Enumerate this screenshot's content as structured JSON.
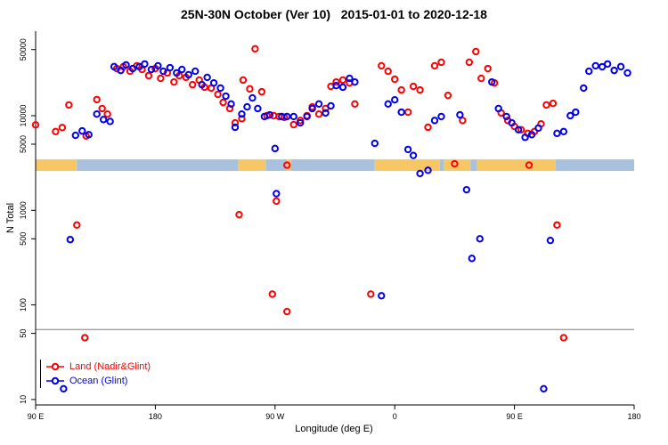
{
  "figure": {
    "background": "#ffffff"
  },
  "chart_data": {
    "type": "scatter",
    "title": "25N-30N October (Ver 10)   2015-01-01 to 2020-12-18",
    "xlabel": "Longitude (deg E)",
    "ylabel": "N Total",
    "yscale": "log",
    "grid": false,
    "legend_position": "bottom-left",
    "ylim": [
      10,
      50000
    ],
    "xlim_deg_east": [
      90,
      540
    ],
    "x_axis": {
      "ticks": [
        {
          "lon": 90,
          "label": "90 E"
        },
        {
          "lon": 180,
          "label": "180"
        },
        {
          "lon": 270,
          "label": "90 W"
        },
        {
          "lon": 360,
          "label": "0"
        },
        {
          "lon": 450,
          "label": "90 E"
        },
        {
          "lon": 540,
          "label": "180"
        }
      ]
    },
    "y_axis": {
      "ticks": [
        10,
        50,
        100,
        500,
        1000,
        5000,
        10000,
        50000
      ],
      "labels": [
        "10",
        "50",
        "100",
        "500",
        "1000",
        "5000",
        "10000",
        "50000"
      ]
    },
    "reference_line": {
      "n": 55,
      "color": "#7f7f7f"
    },
    "band": {
      "n": 3000,
      "half_height": 6.5,
      "land_color": "#f7c766",
      "ocean_color": "#a8c2de",
      "segments": [
        {
          "from": 90,
          "to": 121,
          "type": "land"
        },
        {
          "from": 121,
          "to": 242,
          "type": "ocean"
        },
        {
          "from": 242,
          "to": 263,
          "type": "land"
        },
        {
          "from": 263,
          "to": 279,
          "type": "ocean"
        },
        {
          "from": 279,
          "to": 282,
          "type": "land"
        },
        {
          "from": 282,
          "to": 345,
          "type": "ocean"
        },
        {
          "from": 345,
          "to": 394,
          "type": "land"
        },
        {
          "from": 394,
          "to": 397,
          "type": "ocean"
        },
        {
          "from": 397,
          "to": 417,
          "type": "land"
        },
        {
          "from": 417,
          "to": 422,
          "type": "ocean"
        },
        {
          "from": 422,
          "to": 481,
          "type": "land"
        },
        {
          "from": 481,
          "to": 540,
          "type": "ocean"
        }
      ]
    },
    "series": [
      {
        "name": "Land (Nadir&Glint)",
        "color": "#ff0000",
        "points": [
          [
            90,
            8000
          ],
          [
            105,
            6800
          ],
          [
            110,
            7500
          ],
          [
            115,
            13000
          ],
          [
            121,
            700
          ],
          [
            127,
            45
          ],
          [
            128,
            6100
          ],
          [
            136,
            14800
          ],
          [
            140,
            11900
          ],
          [
            144,
            10400
          ],
          [
            151,
            31500
          ],
          [
            156,
            33000
          ],
          [
            161,
            29500
          ],
          [
            166,
            33700
          ],
          [
            170,
            30800
          ],
          [
            175,
            26500
          ],
          [
            180,
            31500
          ],
          [
            184,
            24800
          ],
          [
            189,
            28300
          ],
          [
            194,
            22700
          ],
          [
            198,
            26500
          ],
          [
            203,
            25400
          ],
          [
            208,
            21300
          ],
          [
            213,
            23800
          ],
          [
            217,
            20000
          ],
          [
            222,
            19600
          ],
          [
            227,
            16800
          ],
          [
            231,
            13800
          ],
          [
            236,
            11900
          ],
          [
            240,
            8400
          ],
          [
            243,
            900
          ],
          [
            245,
            9300
          ],
          [
            246,
            23800
          ],
          [
            251,
            19200
          ],
          [
            255,
            51000
          ],
          [
            260,
            17900
          ],
          [
            264,
            10000
          ],
          [
            268,
            130
          ],
          [
            269,
            10000
          ],
          [
            271,
            1250
          ],
          [
            273,
            9800
          ],
          [
            277,
            9600
          ],
          [
            279,
            3000
          ],
          [
            279,
            85
          ],
          [
            284,
            8050
          ],
          [
            289,
            8900
          ],
          [
            294,
            10000
          ],
          [
            298,
            12400
          ],
          [
            303,
            10400
          ],
          [
            308,
            11900
          ],
          [
            312,
            20400
          ],
          [
            316,
            22700
          ],
          [
            321,
            23800
          ],
          [
            326,
            22200
          ],
          [
            330,
            13300
          ],
          [
            342,
            130
          ],
          [
            350,
            33700
          ],
          [
            355,
            29500
          ],
          [
            360,
            24300
          ],
          [
            365,
            18700
          ],
          [
            370,
            10900
          ],
          [
            374,
            20400
          ],
          [
            379,
            18700
          ],
          [
            385,
            7550
          ],
          [
            390,
            33700
          ],
          [
            395,
            36700
          ],
          [
            400,
            16400
          ],
          [
            405,
            3100
          ],
          [
            411,
            8900
          ],
          [
            416,
            36700
          ],
          [
            421,
            47600
          ],
          [
            425,
            24800
          ],
          [
            430,
            31500
          ],
          [
            435,
            22200
          ],
          [
            440,
            10700
          ],
          [
            445,
            8900
          ],
          [
            450,
            7700
          ],
          [
            455,
            7100
          ],
          [
            460,
            6500
          ],
          [
            461,
            3000
          ],
          [
            465,
            6800
          ],
          [
            470,
            8200
          ],
          [
            474,
            13000
          ],
          [
            479,
            13500
          ],
          [
            482,
            700
          ],
          [
            487,
            45
          ]
        ]
      },
      {
        "name": "Ocean (Glint)",
        "color": "#0000ee",
        "points": [
          [
            111,
            13
          ],
          [
            116,
            490
          ],
          [
            120,
            6200
          ],
          [
            125,
            6900
          ],
          [
            130,
            6300
          ],
          [
            136,
            10400
          ],
          [
            141,
            9100
          ],
          [
            146,
            8700
          ],
          [
            149,
            33000
          ],
          [
            154,
            30100
          ],
          [
            158,
            34400
          ],
          [
            163,
            31500
          ],
          [
            168,
            33000
          ],
          [
            172,
            35200
          ],
          [
            177,
            30800
          ],
          [
            182,
            33700
          ],
          [
            186,
            29500
          ],
          [
            191,
            32200
          ],
          [
            196,
            28300
          ],
          [
            200,
            30800
          ],
          [
            205,
            27100
          ],
          [
            210,
            29500
          ],
          [
            215,
            21300
          ],
          [
            219,
            25400
          ],
          [
            224,
            22200
          ],
          [
            229,
            19600
          ],
          [
            233,
            16100
          ],
          [
            237,
            13300
          ],
          [
            240,
            7550
          ],
          [
            245,
            10400
          ],
          [
            249,
            12400
          ],
          [
            253,
            15400
          ],
          [
            257,
            11900
          ],
          [
            262,
            9800
          ],
          [
            266,
            10200
          ],
          [
            270,
            4500
          ],
          [
            271,
            1500
          ],
          [
            275,
            9800
          ],
          [
            279,
            9800
          ],
          [
            284,
            9800
          ],
          [
            289,
            8400
          ],
          [
            294,
            9800
          ],
          [
            298,
            11900
          ],
          [
            303,
            13300
          ],
          [
            308,
            10700
          ],
          [
            312,
            12700
          ],
          [
            316,
            20800
          ],
          [
            321,
            20000
          ],
          [
            326,
            24800
          ],
          [
            330,
            22700
          ],
          [
            345,
            5100
          ],
          [
            350,
            125
          ],
          [
            355,
            13300
          ],
          [
            360,
            14700
          ],
          [
            365,
            10900
          ],
          [
            370,
            4400
          ],
          [
            374,
            3800
          ],
          [
            379,
            2450
          ],
          [
            385,
            2650
          ],
          [
            390,
            8900
          ],
          [
            395,
            9800
          ],
          [
            409,
            10200
          ],
          [
            414,
            1650
          ],
          [
            418,
            310
          ],
          [
            424,
            500
          ],
          [
            433,
            22700
          ],
          [
            438,
            11900
          ],
          [
            444,
            9800
          ],
          [
            448,
            8400
          ],
          [
            453,
            7100
          ],
          [
            458,
            5900
          ],
          [
            463,
            6300
          ],
          [
            468,
            7400
          ],
          [
            472,
            13
          ],
          [
            477,
            480
          ],
          [
            482,
            6500
          ],
          [
            487,
            6800
          ],
          [
            492,
            10000
          ],
          [
            496,
            10900
          ],
          [
            502,
            19600
          ],
          [
            506,
            29500
          ],
          [
            511,
            33700
          ],
          [
            516,
            32900
          ],
          [
            520,
            35200
          ],
          [
            525,
            30100
          ],
          [
            530,
            33000
          ],
          [
            535,
            28300
          ]
        ]
      }
    ]
  }
}
